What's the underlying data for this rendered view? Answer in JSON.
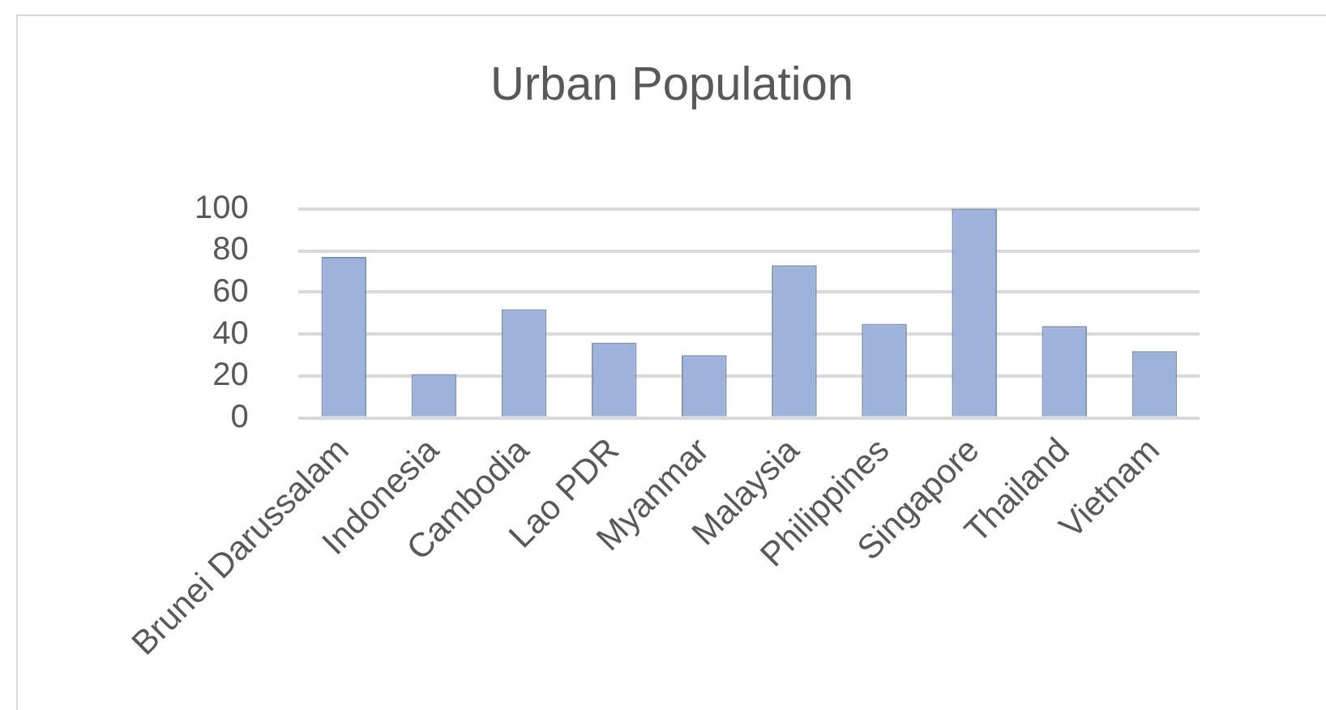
{
  "chart_data": {
    "type": "bar",
    "title": "Urban Population",
    "categories": [
      "Brunei Darussalam",
      "Indonesia",
      "Cambodia",
      "Lao PDR",
      "Myanmar",
      "Malaysia",
      "Philippines",
      "Singapore",
      "Thailand",
      "Vietnam"
    ],
    "values": [
      77,
      21,
      52,
      36,
      30,
      73,
      45,
      100,
      44,
      32
    ],
    "color": "#9db3dc",
    "ylim": [
      0,
      100
    ],
    "yticks": [
      0,
      20,
      40,
      60,
      80,
      100
    ],
    "grid": "y",
    "legend": false
  }
}
